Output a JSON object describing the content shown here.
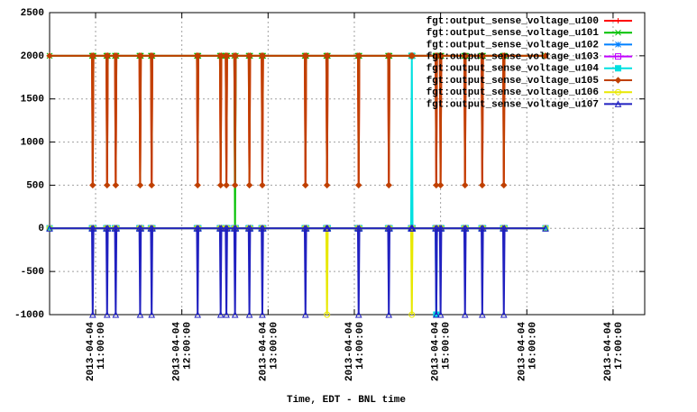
{
  "chart_data": {
    "type": "line",
    "xlabel": "Time, EDT - BNL time",
    "x": [
      "2013-04-04 10:28:00",
      "2013-04-04 10:57:30",
      "2013-04-04 10:58:00",
      "2013-04-04 10:58:30",
      "2013-04-04 11:07:30",
      "2013-04-04 11:08:00",
      "2013-04-04 11:08:30",
      "2013-04-04 11:13:30",
      "2013-04-04 11:14:00",
      "2013-04-04 11:14:30",
      "2013-04-04 11:30:30",
      "2013-04-04 11:31:00",
      "2013-04-04 11:31:30",
      "2013-04-04 11:38:30",
      "2013-04-04 11:39:00",
      "2013-04-04 11:39:30",
      "2013-04-04 12:10:30",
      "2013-04-04 12:11:00",
      "2013-04-04 12:11:30",
      "2013-04-04 12:26:30",
      "2013-04-04 12:27:00",
      "2013-04-04 12:27:30",
      "2013-04-04 12:30:30",
      "2013-04-04 12:31:00",
      "2013-04-04 12:31:30",
      "2013-04-04 12:36:30",
      "2013-04-04 12:37:00",
      "2013-04-04 12:37:30",
      "2013-04-04 12:46:30",
      "2013-04-04 12:47:00",
      "2013-04-04 12:47:30",
      "2013-04-04 12:55:30",
      "2013-04-04 12:56:00",
      "2013-04-04 12:56:30",
      "2013-04-04 13:25:30",
      "2013-04-04 13:26:00",
      "2013-04-04 13:26:30",
      "2013-04-04 13:40:30",
      "2013-04-04 13:41:00",
      "2013-04-04 13:41:30",
      "2013-04-04 14:02:30",
      "2013-04-04 14:03:00",
      "2013-04-04 14:03:30",
      "2013-04-04 14:23:30",
      "2013-04-04 14:24:00",
      "2013-04-04 14:24:30",
      "2013-04-04 14:39:30",
      "2013-04-04 14:40:00",
      "2013-04-04 14:40:30",
      "2013-04-04 14:56:30",
      "2013-04-04 14:57:00",
      "2013-04-04 14:57:30",
      "2013-04-04 14:59:30",
      "2013-04-04 15:00:00",
      "2013-04-04 15:00:30",
      "2013-04-04 15:16:30",
      "2013-04-04 15:17:00",
      "2013-04-04 15:17:30",
      "2013-04-04 15:28:30",
      "2013-04-04 15:29:00",
      "2013-04-04 15:29:30",
      "2013-04-04 15:43:30",
      "2013-04-04 15:44:00",
      "2013-04-04 15:44:30",
      "2013-04-04 16:13:00"
    ],
    "series": [
      {
        "name": "fgt:output_sense_voltage_u100",
        "color": "#ff0000",
        "values": [
          2000,
          2000,
          500,
          2000,
          2000,
          500,
          2000,
          2000,
          500,
          2000,
          2000,
          500,
          2000,
          2000,
          500,
          2000,
          2000,
          500,
          2000,
          2000,
          500,
          2000,
          2000,
          500,
          2000,
          2000,
          500,
          2000,
          2000,
          500,
          2000,
          2000,
          500,
          2000,
          2000,
          500,
          2000,
          2000,
          500,
          2000,
          2000,
          500,
          2000,
          2000,
          500,
          2000,
          2000,
          2000,
          2000,
          2000,
          500,
          2000,
          2000,
          500,
          2000,
          2000,
          500,
          2000,
          2000,
          500,
          2000,
          2000,
          500,
          2000,
          2000
        ]
      },
      {
        "name": "fgt:output_sense_voltage_u101",
        "color": "#00c000",
        "values": [
          2000,
          2000,
          2000,
          2000,
          2000,
          2000,
          2000,
          2000,
          2000,
          2000,
          2000,
          2000,
          2000,
          2000,
          2000,
          2000,
          2000,
          2000,
          2000,
          2000,
          2000,
          2000,
          2000,
          2000,
          2000,
          2000,
          0,
          2000,
          2000,
          2000,
          2000,
          2000,
          2000,
          2000,
          2000,
          2000,
          2000,
          2000,
          2000,
          2000,
          2000,
          2000,
          2000,
          2000,
          2000,
          2000,
          2000,
          2000,
          2000,
          2000,
          2000,
          2000,
          2000,
          2000,
          2000,
          2000,
          2000,
          2000,
          2000,
          2000,
          2000,
          2000,
          2000,
          2000,
          2000
        ]
      },
      {
        "name": "fgt:output_sense_voltage_u102",
        "color": "#0080ff",
        "values": [
          0,
          0,
          0,
          0,
          0,
          0,
          0,
          0,
          0,
          0,
          0,
          0,
          0,
          0,
          0,
          0,
          0,
          0,
          0,
          0,
          0,
          0,
          0,
          0,
          0,
          0,
          0,
          0,
          0,
          0,
          0,
          0,
          0,
          0,
          0,
          0,
          0,
          0,
          0,
          0,
          0,
          0,
          0,
          0,
          0,
          0,
          0,
          0,
          0,
          0,
          0,
          0,
          0,
          0,
          0,
          0,
          0,
          0,
          0,
          0,
          0,
          0,
          0,
          0,
          0
        ]
      },
      {
        "name": "fgt:output_sense_voltage_u103",
        "color": "#c000ff",
        "values": [
          0,
          0,
          0,
          0,
          0,
          0,
          0,
          0,
          0,
          0,
          0,
          0,
          0,
          0,
          0,
          0,
          0,
          0,
          0,
          0,
          0,
          0,
          0,
          0,
          0,
          0,
          0,
          0,
          0,
          0,
          0,
          0,
          0,
          0,
          0,
          0,
          0,
          0,
          0,
          0,
          0,
          0,
          0,
          0,
          0,
          0,
          0,
          0,
          0,
          0,
          0,
          0,
          0,
          0,
          0,
          0,
          0,
          0,
          0,
          0,
          0,
          0,
          0,
          0,
          0
        ]
      },
      {
        "name": "fgt:output_sense_voltage_u104",
        "color": "#00e0e0",
        "values": [
          0,
          0,
          0,
          0,
          0,
          0,
          0,
          0,
          0,
          0,
          0,
          0,
          0,
          0,
          0,
          0,
          0,
          0,
          0,
          0,
          0,
          0,
          0,
          0,
          0,
          0,
          0,
          0,
          0,
          0,
          0,
          0,
          0,
          0,
          0,
          0,
          0,
          0,
          0,
          0,
          0,
          0,
          0,
          0,
          0,
          0,
          0,
          2000,
          0,
          0,
          -1000,
          0,
          0,
          0,
          0,
          0,
          0,
          0,
          0,
          0,
          0,
          0,
          0,
          0,
          0
        ]
      },
      {
        "name": "fgt:output_sense_voltage_u105",
        "color": "#c04000",
        "values": [
          2000,
          2000,
          500,
          2000,
          2000,
          500,
          2000,
          2000,
          500,
          2000,
          2000,
          500,
          2000,
          2000,
          500,
          2000,
          2000,
          500,
          2000,
          2000,
          500,
          2000,
          2000,
          500,
          2000,
          2000,
          500,
          2000,
          2000,
          500,
          2000,
          2000,
          500,
          2000,
          2000,
          500,
          2000,
          2000,
          500,
          2000,
          2000,
          500,
          2000,
          2000,
          500,
          2000,
          2000,
          2000,
          2000,
          2000,
          500,
          2000,
          2000,
          500,
          2000,
          2000,
          500,
          2000,
          2000,
          500,
          2000,
          2000,
          500,
          2000,
          2000
        ]
      },
      {
        "name": "fgt:output_sense_voltage_u106",
        "color": "#e8e800",
        "values": [
          0,
          0,
          0,
          0,
          0,
          0,
          0,
          0,
          0,
          0,
          0,
          0,
          0,
          0,
          0,
          0,
          0,
          0,
          0,
          0,
          0,
          0,
          0,
          0,
          0,
          0,
          0,
          0,
          0,
          0,
          0,
          0,
          0,
          0,
          0,
          0,
          0,
          0,
          -1000,
          0,
          0,
          0,
          0,
          0,
          0,
          0,
          0,
          -1000,
          0,
          0,
          0,
          0,
          0,
          0,
          0,
          0,
          0,
          0,
          0,
          0,
          0,
          0,
          0,
          0,
          0
        ]
      },
      {
        "name": "fgt:output_sense_voltage_u107",
        "color": "#2020c0",
        "values": [
          0,
          0,
          -1000,
          0,
          0,
          -1000,
          0,
          0,
          -1000,
          0,
          0,
          -1000,
          0,
          0,
          -1000,
          0,
          0,
          -1000,
          0,
          0,
          -1000,
          0,
          0,
          -1000,
          0,
          0,
          -1000,
          0,
          0,
          -1000,
          0,
          0,
          -1000,
          0,
          0,
          -1000,
          0,
          0,
          0,
          0,
          0,
          -1000,
          0,
          0,
          -1000,
          0,
          0,
          0,
          0,
          0,
          -1000,
          0,
          0,
          -1000,
          0,
          0,
          -1000,
          0,
          0,
          -1000,
          0,
          0,
          -1000,
          0,
          0
        ]
      }
    ],
    "xlim": [
      "2013-04-04 10:28:00",
      "2013-04-04 17:22:00"
    ],
    "xticks": [
      "2013-04-04 11:00:00",
      "2013-04-04 12:00:00",
      "2013-04-04 13:00:00",
      "2013-04-04 14:00:00",
      "2013-04-04 15:00:00",
      "2013-04-04 16:00:00",
      "2013-04-04 17:00:00"
    ],
    "ylim": [
      -1000,
      2500
    ],
    "yticks": [
      -1000,
      -500,
      0,
      500,
      1000,
      1500,
      2000,
      2500
    ],
    "grid": true,
    "legend": "upper right"
  }
}
